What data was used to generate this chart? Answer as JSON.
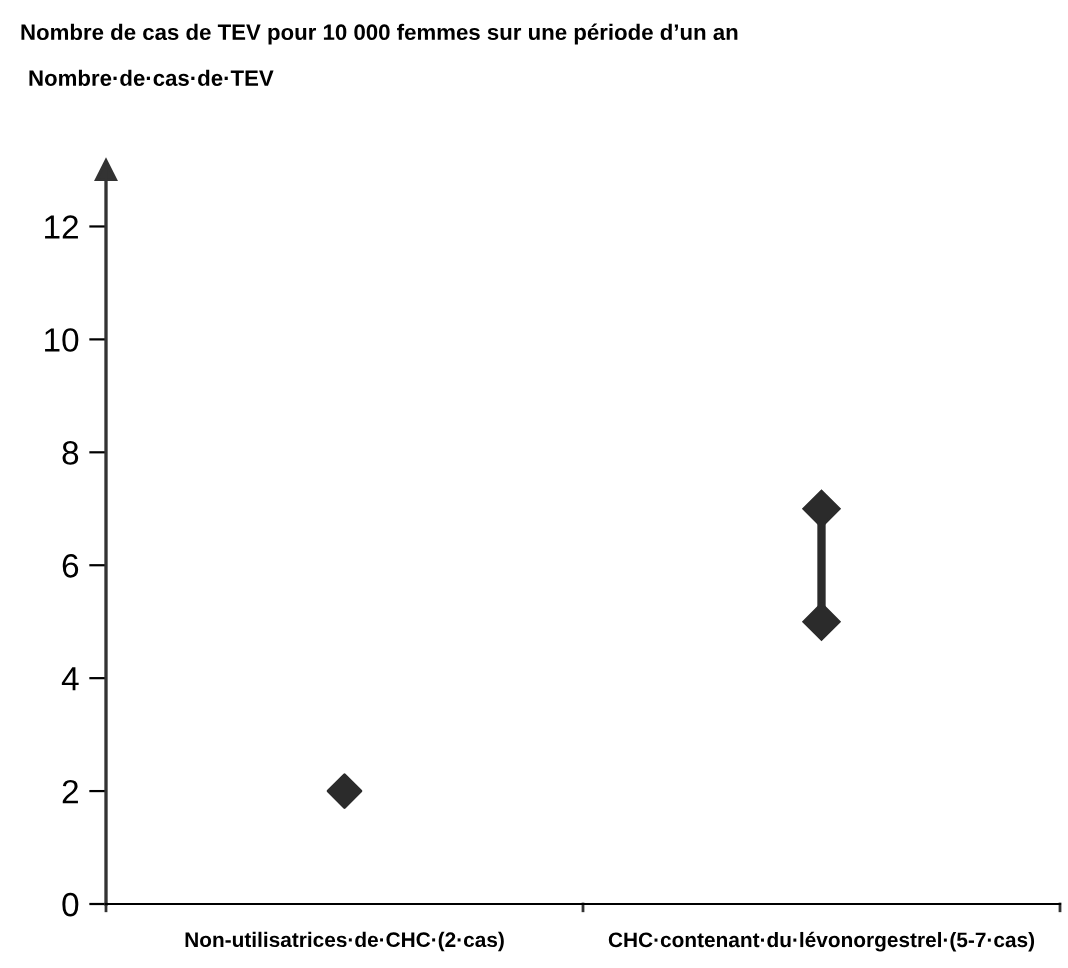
{
  "chart_data": {
    "type": "scatter",
    "title": "Nombre de cas de TEV pour 10 000 femmes sur une période d’un an",
    "ylabel": "Nombre·de·cas·de·TEV",
    "categories": [
      "Non-utilisatrices·de·CHC·(2·cas)",
      "CHC·contenant·du·lévonorgestrel·(5-7·cas)"
    ],
    "series": [
      {
        "color": "#2b2b2b",
        "values": [
          2,
          null
        ]
      },
      {
        "type": "line",
        "color": "#2b2b2b",
        "x": [
          "CHC·contenant·du·lévonorgestrel·(5-7·cas)",
          "CHC·contenant·du·lévonorgestrel·(5-7·cas)"
        ],
        "values": [
          5,
          7
        ]
      }
    ],
    "ylim": [
      0,
      13
    ],
    "yticks": [
      0,
      2,
      4,
      6,
      8,
      10,
      12
    ],
    "marker": "diamond",
    "grid": false,
    "legend": false
  }
}
